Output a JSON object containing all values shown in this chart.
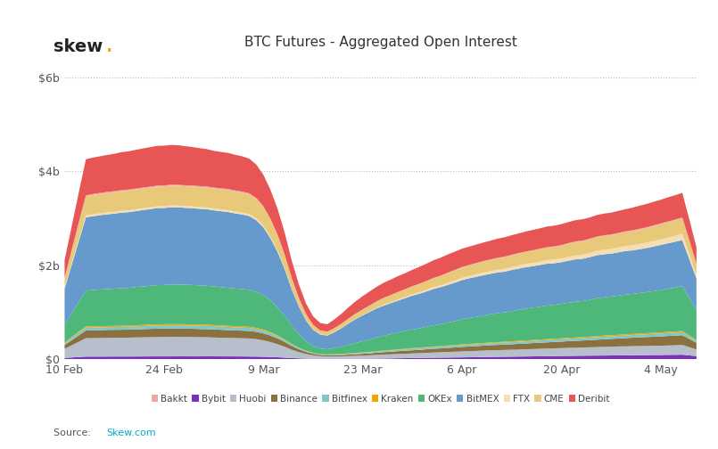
{
  "title": "BTC Futures - Aggregated Open Interest",
  "skew_dot_color": "#f5a623",
  "source_color": "#00aacc",
  "ylabel_ticks": [
    "$0",
    "$2b",
    "$4b",
    "$6b"
  ],
  "ytick_values": [
    0,
    2000000000,
    4000000000,
    6000000000
  ],
  "ylim": [
    0,
    6500000000
  ],
  "xtick_labels": [
    "10 Feb",
    "24 Feb",
    "9 Mar",
    "23 Mar",
    "6 Apr",
    "20 Apr",
    "4 May"
  ],
  "bg_color": "#ffffff",
  "grid_color": "#bbbbbb",
  "n_points": 90,
  "legend_labels": [
    "Bakkt",
    "Bybit",
    "Huobi",
    "Binance",
    "Bitfinex",
    "Kraken",
    "OKEx",
    "BitMEX",
    "FTX",
    "CME",
    "Deribit"
  ],
  "legend_colors": [
    "#f4a5a5",
    "#7b2fbe",
    "#b8bfcc",
    "#8b7040",
    "#7ec8c8",
    "#f0a500",
    "#4db87a",
    "#6699cc",
    "#f5deb3",
    "#e8c97a",
    "#e85555"
  ],
  "stack_colors": [
    "#7b2fbe",
    "#b8bfcc",
    "#8b7040",
    "#7ec8c8",
    "#f0a500",
    "#4db87a",
    "#6699cc",
    "#f5deb3",
    "#e8c97a",
    "#f4a5a5",
    "#e85555"
  ]
}
